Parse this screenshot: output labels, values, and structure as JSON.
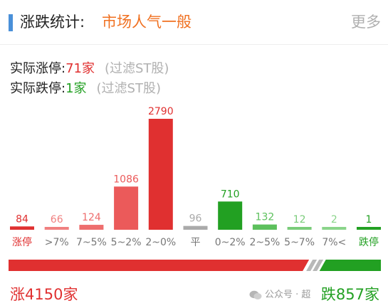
{
  "header": {
    "title": "涨跌统计:",
    "mood": "市场人气一般",
    "more": "更多"
  },
  "stats": [
    {
      "label": "实际涨停:",
      "value": "71家",
      "note": "(过滤ST股)"
    },
    {
      "label": "实际跌停:",
      "value": "1家",
      "note": "(过滤ST股)"
    }
  ],
  "colors": {
    "accent": "#4a90d9",
    "up": "#e03030",
    "down": "#22a022",
    "neutral": "#aaaaaa",
    "mood": "#f07020"
  },
  "chart_data": {
    "type": "bar",
    "categories": [
      "涨停",
      ">7%",
      "7~5%",
      "5~2%",
      "2~0%",
      "平",
      "0~2%",
      "2~5%",
      "5~7%",
      "7%<",
      "跌停"
    ],
    "values": [
      84,
      66,
      124,
      1086,
      2790,
      96,
      710,
      132,
      12,
      2,
      1
    ],
    "colors": [
      "#e03030",
      "#f08080",
      "#ee6e6e",
      "#eb5a5a",
      "#e03030",
      "#aaaaaa",
      "#22a022",
      "#5cc05c",
      "#7acc7a",
      "#8ad48a",
      "#22a022"
    ]
  },
  "footer": {
    "up_total": "涨4150家",
    "down_total": "跌857家",
    "up_count": 4150,
    "down_count": 857
  },
  "watermark": {
    "icon": "wechat-icon",
    "text": "公众号 · 超"
  }
}
